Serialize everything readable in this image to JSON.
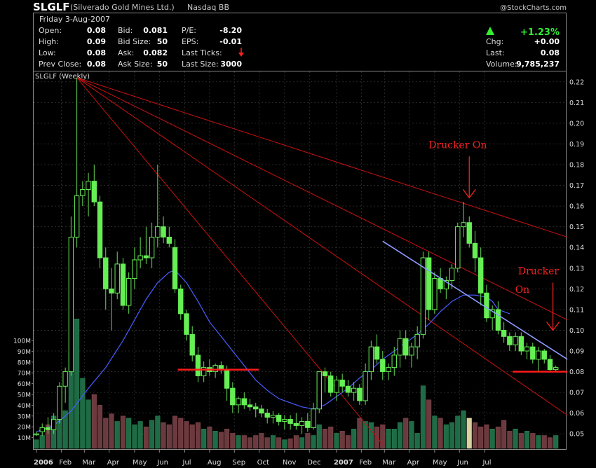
{
  "header": {
    "symbol": "SLGLF",
    "name": "(Silverado Gold Mines Ltd.)",
    "exchange": "Nasdaq BB",
    "copyright": "@StockCharts.com",
    "date_line": "Friday  3-Aug-2007",
    "stats": [
      {
        "label": "Open:",
        "value": "0.08"
      },
      {
        "label": "High:",
        "value": "0.09"
      },
      {
        "label": "Low:",
        "value": "0.08"
      },
      {
        "label": "Prev Close:",
        "value": "0.08"
      },
      {
        "label": "Bid:",
        "value": "0.081"
      },
      {
        "label": "Bid Size:",
        "value": "50"
      },
      {
        "label": "Ask:",
        "value": "0.082"
      },
      {
        "label": "Ask Size:",
        "value": "50"
      },
      {
        "label": "P/E:",
        "value": "-8.20"
      },
      {
        "label": "EPS:",
        "value": "-0.01"
      },
      {
        "label": "Last Ticks:",
        "value": ""
      },
      {
        "label": "Last Size:",
        "value": "3000"
      }
    ],
    "change_pct": "+1.23%",
    "right_stats": [
      {
        "label": "Chg:",
        "value": "+0.00"
      },
      {
        "label": "Last:",
        "value": "0.08"
      },
      {
        "label": "Volume:",
        "value": "9,785,237"
      }
    ]
  },
  "chart_data": {
    "type": "candlestick",
    "title": "SLGLF (Weekly)",
    "x_labels": [
      "2006",
      "Feb",
      "Mar",
      "Apr",
      "May",
      "Jun",
      "Jul",
      "Aug",
      "Sep",
      "Oct",
      "Nov",
      "Dec",
      "2007",
      "Feb",
      "Mar",
      "Apr",
      "May",
      "Jun",
      "Jul"
    ],
    "x_label_positions": [
      0,
      4.3,
      8.3,
      12.6,
      17,
      21.3,
      25.7,
      30,
      34.3,
      38.6,
      43,
      47.3,
      52,
      56.3,
      60.3,
      64.6,
      69,
      73.3,
      77.7
    ],
    "y_ticks": [
      "0.05",
      "0.06",
      "0.07",
      "0.08",
      "0.09",
      "0.10",
      "0.11",
      "0.12",
      "0.13",
      "0.14",
      "0.15",
      "0.16",
      "0.17",
      "0.18",
      "0.19",
      "0.20",
      "0.21",
      "0.22"
    ],
    "ylim": [
      0.045,
      0.225
    ],
    "volume_ticks": [
      "10M",
      "20M",
      "30M",
      "40M",
      "50M",
      "60M",
      "70M",
      "80M",
      "90M",
      "100M"
    ],
    "ohlc": [
      [
        0.05,
        0.051,
        0.049,
        0.05
      ],
      [
        0.051,
        0.055,
        0.049,
        0.053
      ],
      [
        0.053,
        0.058,
        0.05,
        0.052
      ],
      [
        0.052,
        0.06,
        0.05,
        0.057
      ],
      [
        0.057,
        0.075,
        0.055,
        0.073
      ],
      [
        0.073,
        0.082,
        0.065,
        0.08
      ],
      [
        0.08,
        0.155,
        0.078,
        0.145
      ],
      [
        0.145,
        0.222,
        0.14,
        0.165
      ],
      [
        0.165,
        0.172,
        0.16,
        0.168
      ],
      [
        0.168,
        0.176,
        0.155,
        0.172
      ],
      [
        0.172,
        0.18,
        0.16,
        0.162
      ],
      [
        0.162,
        0.165,
        0.13,
        0.135
      ],
      [
        0.135,
        0.14,
        0.11,
        0.12
      ],
      [
        0.12,
        0.13,
        0.1,
        0.118
      ],
      [
        0.118,
        0.138,
        0.115,
        0.132
      ],
      [
        0.132,
        0.135,
        0.11,
        0.112
      ],
      [
        0.112,
        0.128,
        0.108,
        0.125
      ],
      [
        0.125,
        0.14,
        0.12,
        0.134
      ],
      [
        0.134,
        0.145,
        0.13,
        0.136
      ],
      [
        0.136,
        0.15,
        0.132,
        0.135
      ],
      [
        0.135,
        0.152,
        0.13,
        0.145
      ],
      [
        0.145,
        0.18,
        0.14,
        0.15
      ],
      [
        0.15,
        0.155,
        0.142,
        0.145
      ],
      [
        0.145,
        0.15,
        0.14,
        0.142
      ],
      [
        0.14,
        0.144,
        0.118,
        0.12
      ],
      [
        0.12,
        0.122,
        0.105,
        0.108
      ],
      [
        0.108,
        0.11,
        0.095,
        0.098
      ],
      [
        0.098,
        0.102,
        0.085,
        0.088
      ],
      [
        0.088,
        0.092,
        0.075,
        0.078
      ],
      [
        0.078,
        0.085,
        0.075,
        0.082
      ],
      [
        0.082,
        0.086,
        0.078,
        0.08
      ],
      [
        0.08,
        0.084,
        0.077,
        0.083
      ],
      [
        0.083,
        0.085,
        0.079,
        0.081
      ],
      [
        0.081,
        0.083,
        0.066,
        0.072
      ],
      [
        0.072,
        0.075,
        0.06,
        0.064
      ],
      [
        0.064,
        0.068,
        0.06,
        0.067
      ],
      [
        0.067,
        0.07,
        0.062,
        0.064
      ],
      [
        0.064,
        0.067,
        0.061,
        0.063
      ],
      [
        0.063,
        0.065,
        0.058,
        0.062
      ],
      [
        0.062,
        0.064,
        0.058,
        0.06
      ],
      [
        0.06,
        0.062,
        0.055,
        0.058
      ],
      [
        0.058,
        0.061,
        0.055,
        0.059
      ],
      [
        0.059,
        0.06,
        0.054,
        0.056
      ],
      [
        0.056,
        0.059,
        0.052,
        0.057
      ],
      [
        0.057,
        0.059,
        0.052,
        0.055
      ],
      [
        0.055,
        0.06,
        0.052,
        0.054
      ],
      [
        0.054,
        0.058,
        0.05,
        0.056
      ],
      [
        0.056,
        0.06,
        0.051,
        0.053
      ],
      [
        0.053,
        0.065,
        0.052,
        0.062
      ],
      [
        0.062,
        0.08,
        0.06,
        0.08
      ],
      [
        0.08,
        0.082,
        0.07,
        0.078
      ],
      [
        0.078,
        0.08,
        0.068,
        0.07
      ],
      [
        0.07,
        0.078,
        0.066,
        0.076
      ],
      [
        0.076,
        0.079,
        0.07,
        0.073
      ],
      [
        0.073,
        0.076,
        0.068,
        0.07
      ],
      [
        0.07,
        0.075,
        0.066,
        0.072
      ],
      [
        0.072,
        0.074,
        0.064,
        0.066
      ],
      [
        0.066,
        0.084,
        0.064,
        0.08
      ],
      [
        0.08,
        0.095,
        0.076,
        0.092
      ],
      [
        0.092,
        0.098,
        0.084,
        0.086
      ],
      [
        0.086,
        0.09,
        0.076,
        0.08
      ],
      [
        0.08,
        0.084,
        0.076,
        0.082
      ],
      [
        0.082,
        0.092,
        0.078,
        0.088
      ],
      [
        0.088,
        0.1,
        0.082,
        0.096
      ],
      [
        0.096,
        0.1,
        0.086,
        0.088
      ],
      [
        0.088,
        0.094,
        0.082,
        0.092
      ],
      [
        0.092,
        0.102,
        0.086,
        0.098
      ],
      [
        0.098,
        0.138,
        0.096,
        0.135
      ],
      [
        0.135,
        0.138,
        0.105,
        0.11
      ],
      [
        0.11,
        0.128,
        0.108,
        0.125
      ],
      [
        0.125,
        0.13,
        0.118,
        0.12
      ],
      [
        0.12,
        0.126,
        0.115,
        0.124
      ],
      [
        0.124,
        0.132,
        0.12,
        0.13
      ],
      [
        0.13,
        0.152,
        0.128,
        0.15
      ],
      [
        0.15,
        0.162,
        0.145,
        0.152
      ],
      [
        0.152,
        0.155,
        0.14,
        0.142
      ],
      [
        0.142,
        0.148,
        0.128,
        0.135
      ],
      [
        0.135,
        0.14,
        0.112,
        0.118
      ],
      [
        0.118,
        0.122,
        0.104,
        0.106
      ],
      [
        0.106,
        0.112,
        0.1,
        0.11
      ],
      [
        0.11,
        0.114,
        0.098,
        0.1
      ],
      [
        0.1,
        0.104,
        0.094,
        0.097
      ],
      [
        0.097,
        0.099,
        0.09,
        0.093
      ],
      [
        0.093,
        0.099,
        0.09,
        0.097
      ],
      [
        0.097,
        0.099,
        0.088,
        0.09
      ],
      [
        0.09,
        0.094,
        0.086,
        0.092
      ],
      [
        0.092,
        0.094,
        0.084,
        0.086
      ],
      [
        0.086,
        0.092,
        0.08,
        0.09
      ],
      [
        0.09,
        0.091,
        0.084,
        0.086
      ],
      [
        0.086,
        0.088,
        0.08,
        0.081
      ],
      [
        0.081,
        0.083,
        0.08,
        0.082
      ]
    ],
    "volume_millions": [
      8,
      12,
      22,
      30,
      38,
      35,
      90,
      120,
      65,
      45,
      50,
      40,
      28,
      32,
      25,
      30,
      28,
      22,
      25,
      20,
      26,
      30,
      24,
      22,
      30,
      28,
      25,
      22,
      24,
      18,
      20,
      16,
      15,
      18,
      14,
      12,
      12,
      10,
      12,
      14,
      10,
      12,
      10,
      8,
      9,
      12,
      10,
      14,
      12,
      22,
      18,
      20,
      14,
      16,
      12,
      18,
      28,
      25,
      24,
      20,
      22,
      18,
      18,
      24,
      28,
      25,
      14,
      58,
      45,
      30,
      28,
      22,
      24,
      30,
      35,
      28,
      24,
      20,
      22,
      18,
      20,
      26,
      16,
      18,
      14,
      16,
      14,
      12,
      12,
      10,
      12
    ],
    "moving_average": [
      [
        0,
        0.051
      ],
      [
        3,
        0.054
      ],
      [
        6,
        0.061
      ],
      [
        9,
        0.072
      ],
      [
        12,
        0.082
      ],
      [
        15,
        0.095
      ],
      [
        17,
        0.105
      ],
      [
        19,
        0.115
      ],
      [
        21,
        0.123
      ],
      [
        23,
        0.128
      ],
      [
        24,
        0.129
      ],
      [
        26,
        0.123
      ],
      [
        28,
        0.114
      ],
      [
        30,
        0.104
      ],
      [
        32,
        0.097
      ],
      [
        34,
        0.09
      ],
      [
        36,
        0.083
      ],
      [
        38,
        0.076
      ],
      [
        40,
        0.071
      ],
      [
        42,
        0.067
      ],
      [
        44,
        0.065
      ],
      [
        46,
        0.063
      ],
      [
        48,
        0.062
      ],
      [
        50,
        0.064
      ],
      [
        52,
        0.068
      ],
      [
        54,
        0.072
      ],
      [
        56,
        0.077
      ],
      [
        58,
        0.081
      ],
      [
        60,
        0.086
      ],
      [
        62,
        0.09
      ],
      [
        64,
        0.094
      ],
      [
        66,
        0.098
      ],
      [
        68,
        0.103
      ],
      [
        70,
        0.109
      ],
      [
        72,
        0.114
      ],
      [
        74,
        0.117
      ],
      [
        76,
        0.117
      ],
      [
        78,
        0.116
      ],
      [
        79,
        0.114
      ],
      [
        80,
        0.11
      ],
      [
        82,
        0.108
      ]
    ],
    "fan_lines": [
      {
        "from": [
          7,
          0.222
        ],
        "to": [
          92,
          0.145
        ]
      },
      {
        "from": [
          7,
          0.222
        ],
        "to": [
          92,
          0.105
        ]
      },
      {
        "from": [
          7,
          0.222
        ],
        "to": [
          92,
          0.059
        ]
      },
      {
        "from": [
          7,
          0.222
        ],
        "to": [
          60,
          0.045
        ]
      }
    ],
    "trend_line": {
      "from": [
        60,
        0.143
      ],
      "to": [
        92,
        0.086
      ]
    },
    "support_lines": [
      {
        "from": [
          24.5,
          0.081
        ],
        "to": [
          38.5,
          0.081
        ]
      },
      {
        "from": [
          82.5,
          0.08
        ],
        "to": [
          92,
          0.08
        ]
      }
    ],
    "annotations": [
      {
        "text": "Drucker On",
        "x": 73,
        "y": 0.188
      },
      {
        "text": "Drucker",
        "x": 87,
        "y": 0.127
      },
      {
        "text": "On",
        "x": 84.2,
        "y": 0.118
      }
    ],
    "arrows": [
      {
        "x": 75,
        "from": 0.184,
        "to": 0.164
      },
      {
        "x": 89.5,
        "from": 0.123,
        "to": 0.1
      }
    ]
  }
}
